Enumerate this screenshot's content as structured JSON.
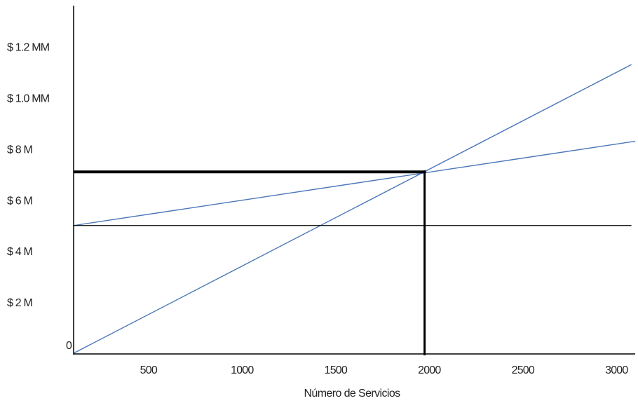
{
  "chart_data": {
    "type": "line",
    "title": "",
    "xlabel": "Número de Servicios",
    "ylabel": "",
    "grid": false,
    "x_ticks": [
      {
        "value": 500,
        "label": "500"
      },
      {
        "value": 1000,
        "label": "1000"
      },
      {
        "value": 1500,
        "label": "1500"
      },
      {
        "value": 2000,
        "label": "2000"
      },
      {
        "value": 2500,
        "label": "2500"
      },
      {
        "value": 3000,
        "label": "3000"
      }
    ],
    "y_ticks": [
      {
        "value": 0,
        "label": "0"
      },
      {
        "value": 2000000,
        "label": "$ 2 M"
      },
      {
        "value": 4000000,
        "label": "$ 4 M"
      },
      {
        "value": 6000000,
        "label": "$ 6 M"
      },
      {
        "value": 8000000,
        "label": "$ 8 M"
      },
      {
        "value": 10000000,
        "label": "$ 1.0 MM"
      },
      {
        "value": 12000000,
        "label": "$ 1.2 MM"
      }
    ],
    "xlim": [
      100,
      3100
    ],
    "ylim": [
      0,
      13500000
    ],
    "series": [
      {
        "color": "#4a76b8",
        "x": [
          100,
          3080
        ],
        "y": [
          0,
          11300000
        ]
      },
      {
        "color": "#4a76b8",
        "x": [
          100,
          3100
        ],
        "y": [
          5000000,
          8300000
        ]
      },
      {
        "color": "#000000",
        "x": [
          100,
          3080
        ],
        "y": [
          5000000,
          5000000
        ]
      }
    ],
    "break_even_guides": {
      "x": 1975,
      "y": 7100000,
      "color": "#000000"
    }
  }
}
